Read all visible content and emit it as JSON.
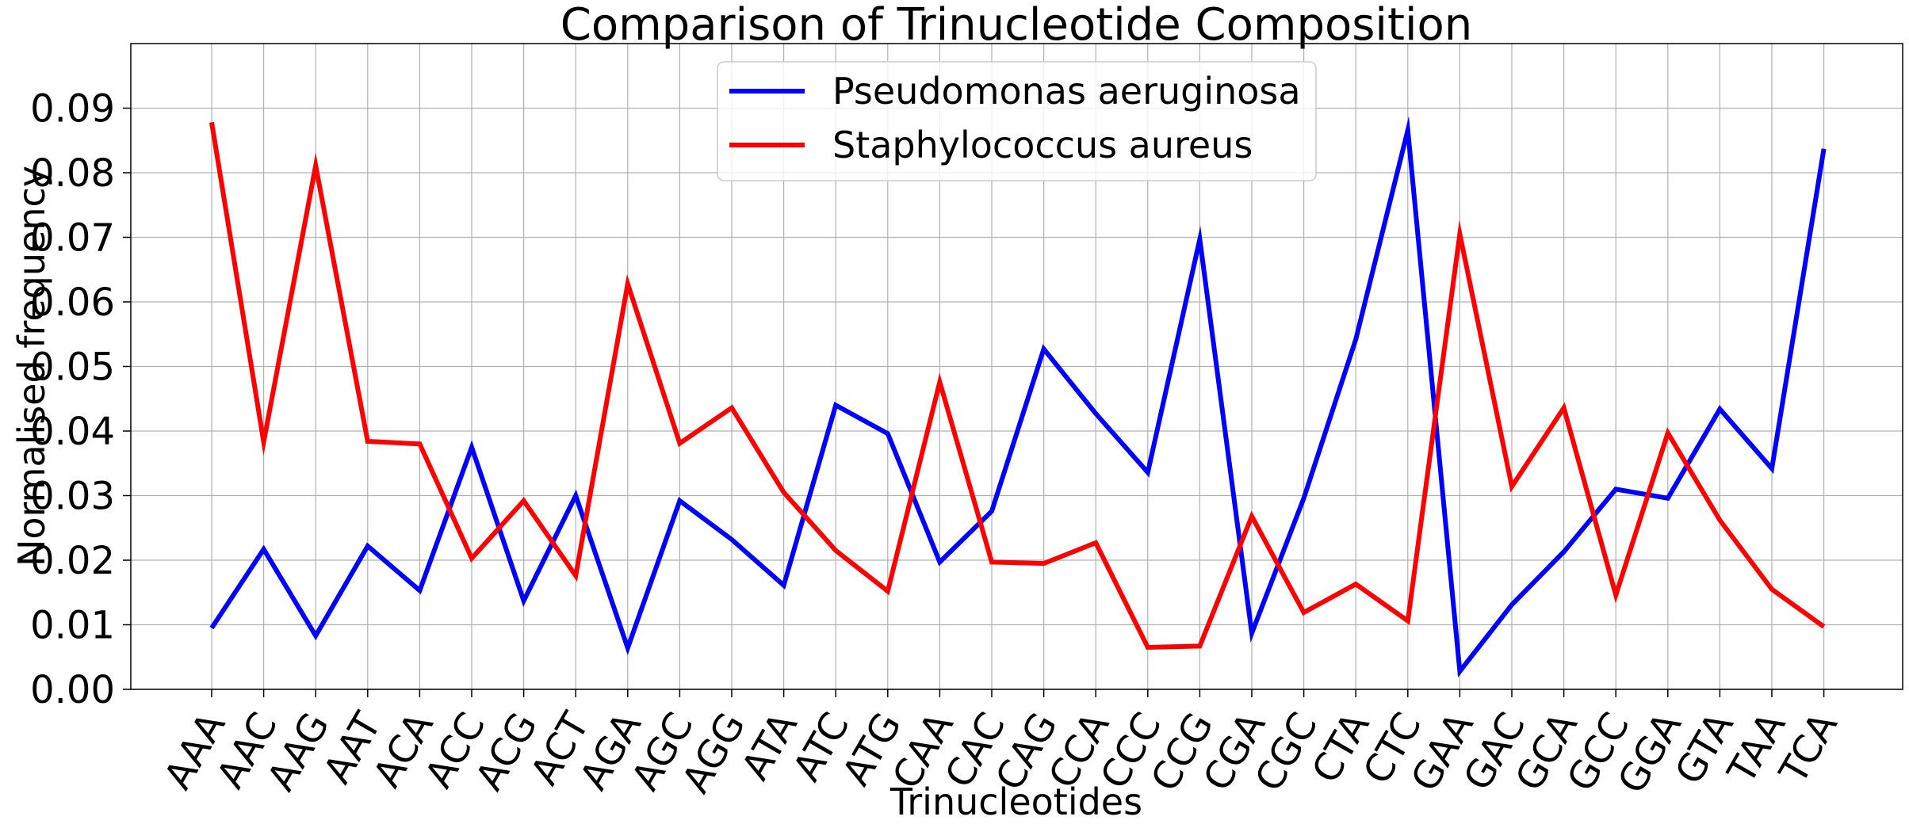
{
  "chart_data": {
    "type": "line",
    "title": "Comparison of Trinucleotide Composition",
    "xlabel": "Trinucleotides",
    "ylabel": "Normalised frequency",
    "ylim": [
      0,
      0.1
    ],
    "yticks": [
      "0.00",
      "0.01",
      "0.02",
      "0.03",
      "0.04",
      "0.05",
      "0.06",
      "0.07",
      "0.08",
      "0.09"
    ],
    "grid": true,
    "legend_position": "top-center",
    "categories": [
      "AAA",
      "AAC",
      "AAG",
      "AAT",
      "ACA",
      "ACC",
      "ACG",
      "ACT",
      "AGA",
      "AGC",
      "AGG",
      "ATA",
      "ATC",
      "ATG",
      "CAA",
      "CAC",
      "CAG",
      "CCA",
      "CCC",
      "CCG",
      "CGA",
      "CGC",
      "CTA",
      "CTC",
      "GAA",
      "GAC",
      "GCA",
      "GCC",
      "GGA",
      "GTA",
      "TAA",
      "TCA"
    ],
    "series": [
      {
        "name": "Pseudomonas aeruginosa",
        "color": "#0000ff",
        "values": [
          0.0095,
          0.0217,
          0.0083,
          0.0222,
          0.0153,
          0.0375,
          0.0137,
          0.03,
          0.0064,
          0.0292,
          0.0232,
          0.0161,
          0.044,
          0.0396,
          0.0197,
          0.0276,
          0.0527,
          0.0427,
          0.0336,
          0.0697,
          0.0087,
          0.0296,
          0.0542,
          0.0866,
          0.0028,
          0.0131,
          0.0213,
          0.031,
          0.0296,
          0.0434,
          0.0342,
          0.0837
        ]
      },
      {
        "name": "Staphylococcus aureus",
        "color": "#ff0000",
        "values": [
          0.0878,
          0.0383,
          0.0811,
          0.0384,
          0.038,
          0.0203,
          0.0292,
          0.0176,
          0.0628,
          0.0381,
          0.0436,
          0.0305,
          0.0215,
          0.0152,
          0.0476,
          0.0197,
          0.0195,
          0.0227,
          0.0065,
          0.0067,
          0.0268,
          0.0119,
          0.0163,
          0.0106,
          0.0705,
          0.0314,
          0.0436,
          0.0146,
          0.0397,
          0.0262,
          0.0155,
          0.0097
        ]
      }
    ]
  }
}
